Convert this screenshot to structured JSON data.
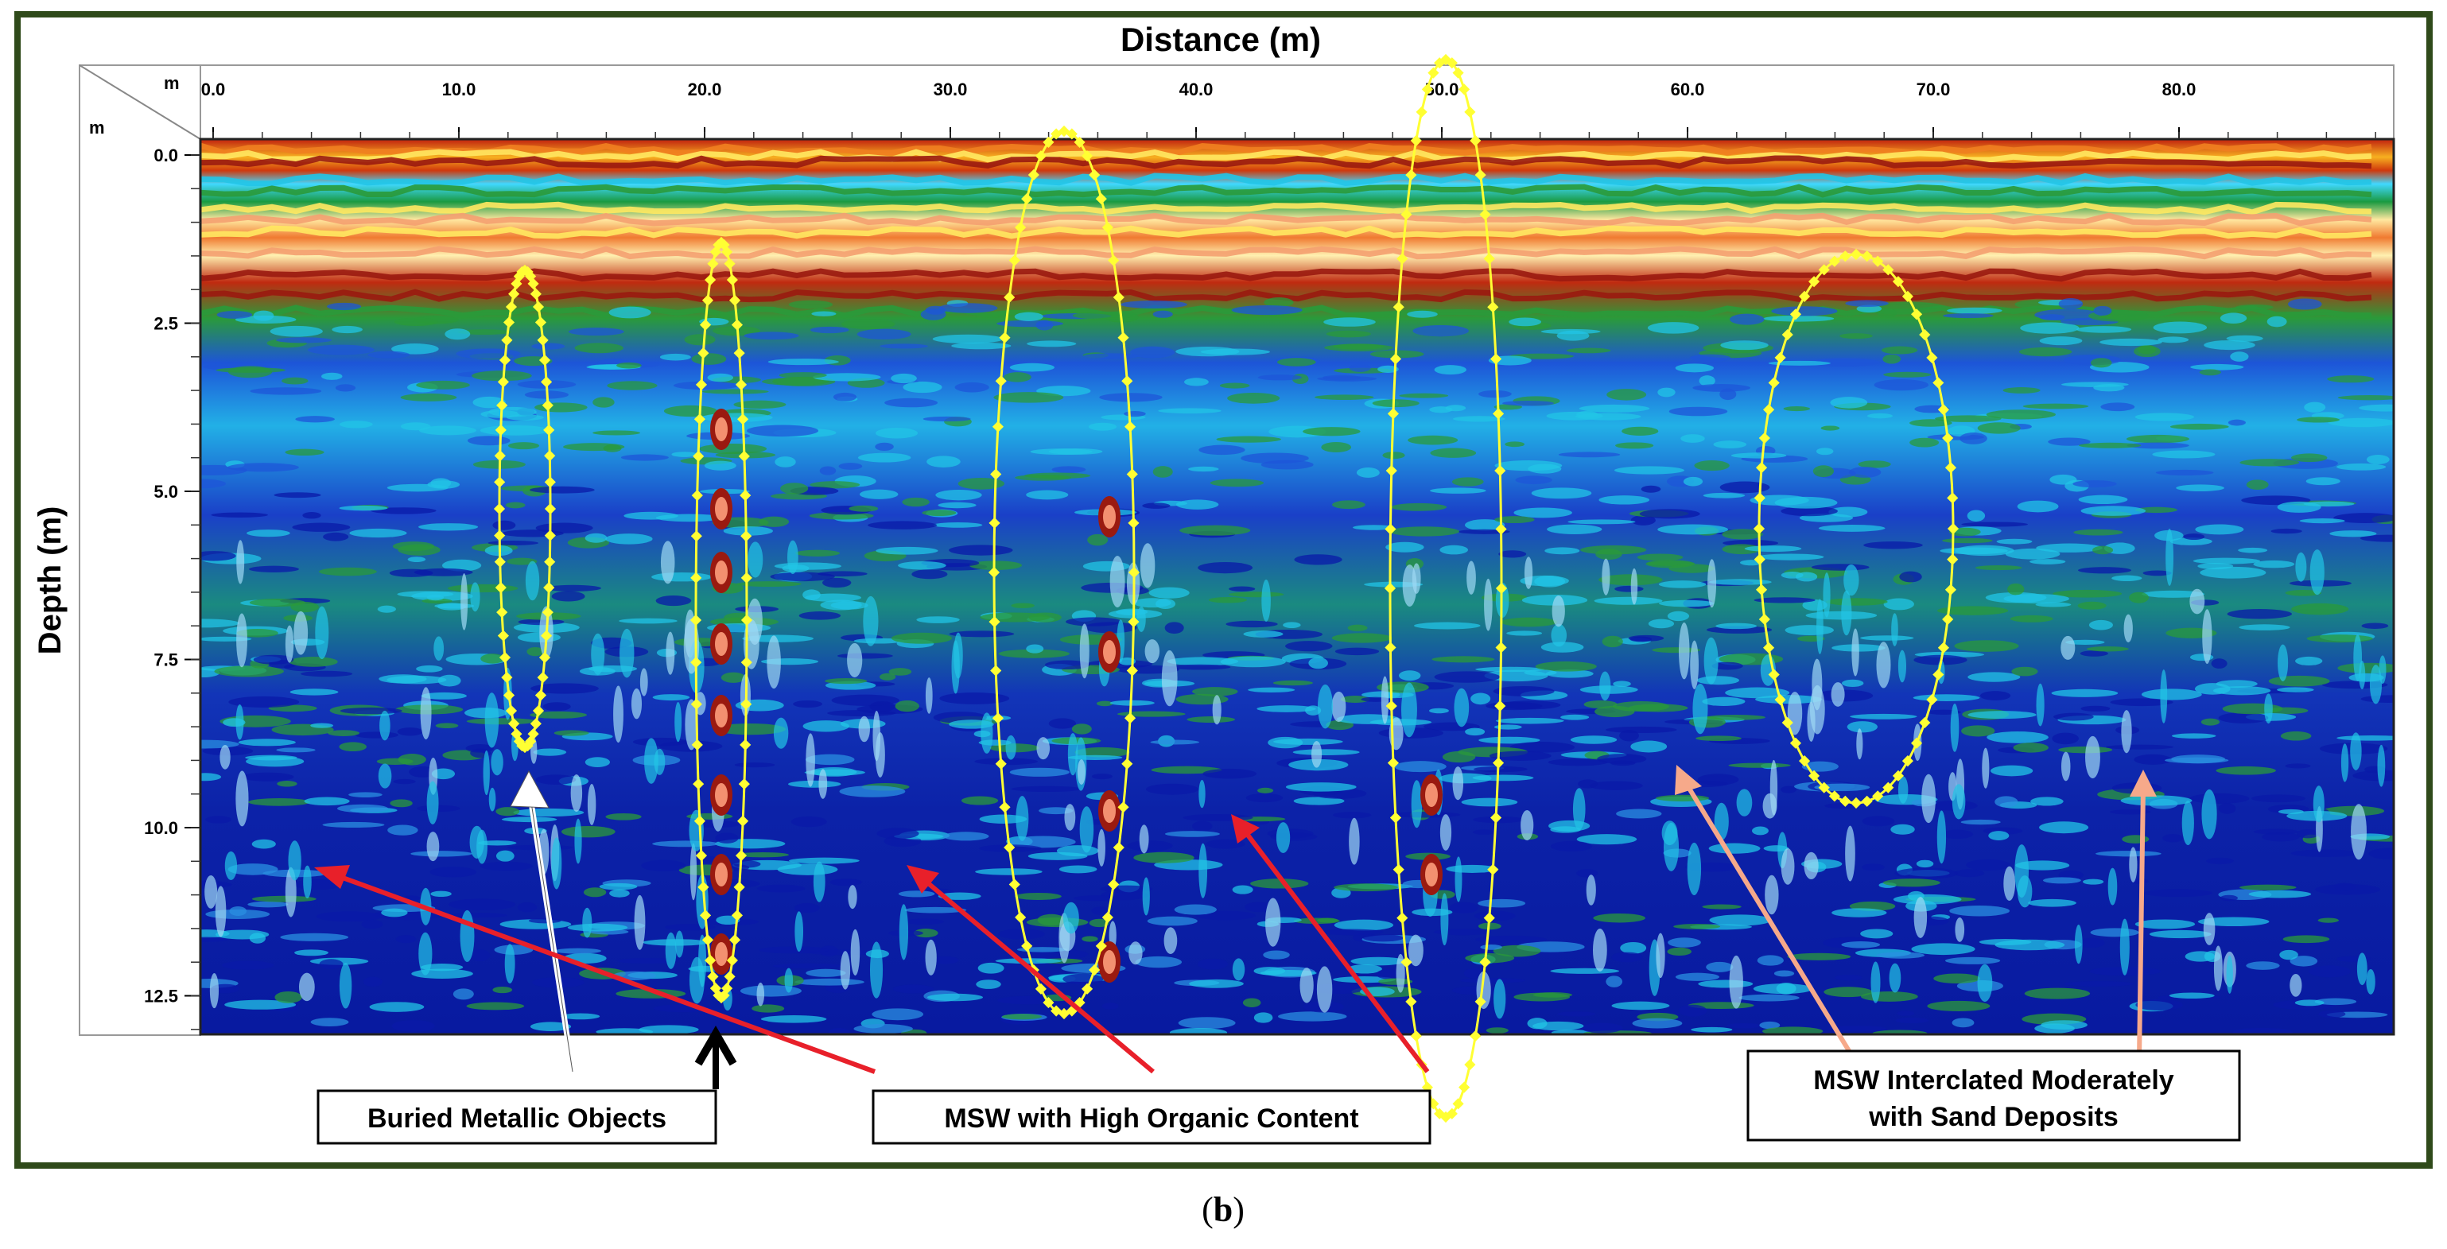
{
  "figure": {
    "x_axis_title": "Distance (m)",
    "y_axis_title": "Depth (m)",
    "x_unit": "m",
    "y_unit": "m",
    "x_ticks": [
      "0.0",
      "10.0",
      "20.0",
      "30.0",
      "40.0",
      "50.0",
      "60.0",
      "70.0",
      "80.0"
    ],
    "y_ticks": [
      "0.0",
      "2.5",
      "5.0",
      "7.5",
      "10.0",
      "12.5"
    ],
    "caption_open": "(",
    "caption_letter": "b",
    "caption_close": ")"
  },
  "annotations": {
    "metallic": "Buried Metallic Objects",
    "organic": "MSW with High Organic Content",
    "sand_line1": "MSW Interclated Moderately",
    "sand_line2": "with Sand Deposits"
  },
  "colors": {
    "frame": "#2f4a1a",
    "ellipse": "#ffff33",
    "arrow_red": "#e8202a",
    "arrow_white": "#ffffff",
    "arrow_black": "#000000",
    "arrow_salmon": "#f6a98a",
    "deep_blue": "#0a1aa8",
    "mid_blue": "#1d55d8",
    "cyan": "#22c4e6",
    "green": "#2a9a3a",
    "dark_red": "#9a1a10",
    "orange": "#f08020",
    "yellow": "#ffe860"
  }
}
